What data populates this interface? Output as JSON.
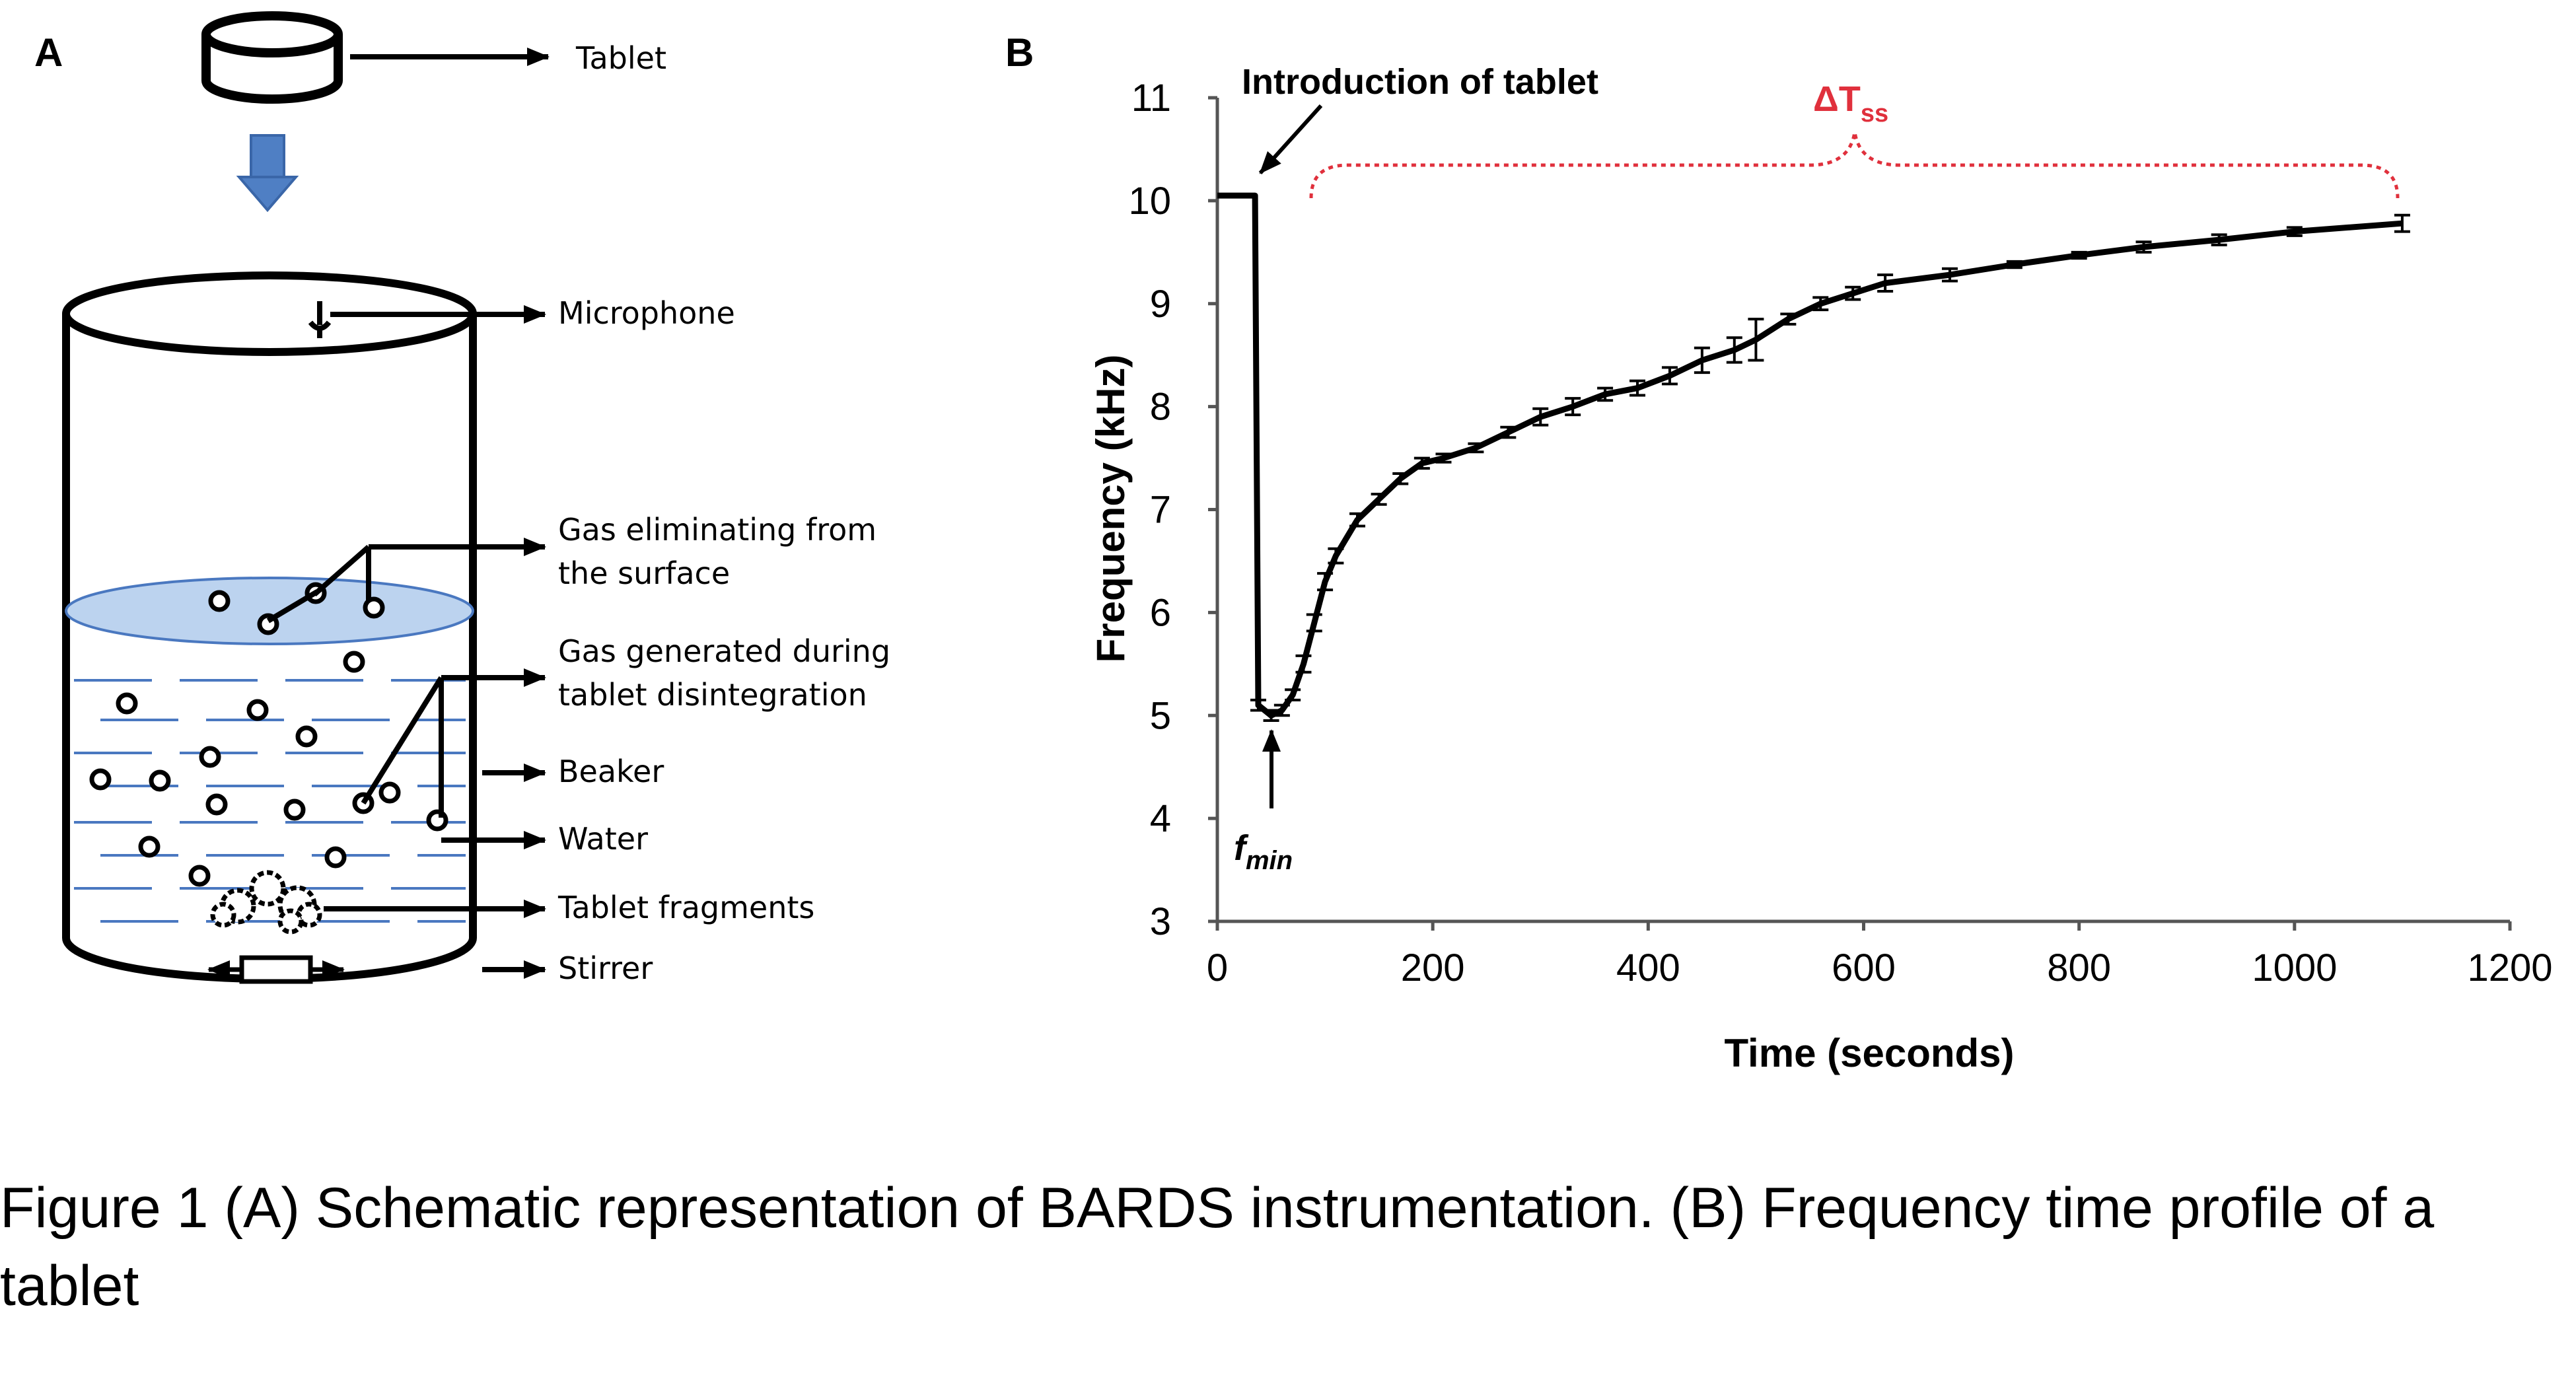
{
  "panel_a": {
    "letter": "A",
    "labels": {
      "tablet": "Tablet",
      "microphone": "Microphone",
      "gas_surface_line1": "Gas eliminating from",
      "gas_surface_line2": "the surface",
      "gas_generated_line1": "Gas generated during",
      "gas_generated_line2": "tablet disintegration",
      "beaker": "Beaker",
      "water": "Water",
      "fragments": "Tablet fragments",
      "stirrer": "Stirrer"
    },
    "colors": {
      "water_surface": "#bcd3ef",
      "water_lines": "#4a78c0",
      "arrow_down": "#4f7fc4"
    }
  },
  "panel_b": {
    "letter": "B",
    "annotation_intro": "Introduction of tablet",
    "annotation_fmin_f": "f",
    "annotation_fmin_sub": "min",
    "annotation_dtss_main": "ΔT",
    "annotation_dtss_sub": "ss",
    "colors": {
      "line": "#000000",
      "dtss": "#e0303c"
    }
  },
  "chart_data": {
    "type": "line",
    "title": "",
    "xlabel": "Time (seconds)",
    "ylabel": "Frequency (kHz)",
    "xlim": [
      0,
      1200
    ],
    "ylim": [
      3,
      11
    ],
    "xticks": [
      0,
      200,
      400,
      600,
      800,
      1000,
      1200
    ],
    "yticks": [
      3,
      4,
      5,
      6,
      7,
      8,
      9,
      10,
      11
    ],
    "grid": false,
    "series": [
      {
        "x": [
          0,
          35,
          35,
          38,
          50,
          60,
          70,
          80,
          90,
          100,
          110,
          130,
          150,
          170,
          190,
          210,
          240,
          270,
          300,
          330,
          360,
          390,
          420,
          450,
          480,
          500,
          530,
          560,
          590,
          620,
          680,
          740,
          800,
          860,
          930,
          1000,
          1100
        ],
        "y": [
          10.05,
          10.05,
          10.05,
          5.1,
          5.0,
          5.05,
          5.2,
          5.5,
          5.9,
          6.3,
          6.55,
          6.9,
          7.1,
          7.3,
          7.45,
          7.5,
          7.6,
          7.75,
          7.9,
          8.0,
          8.12,
          8.18,
          8.3,
          8.45,
          8.55,
          8.65,
          8.85,
          9.0,
          9.1,
          9.2,
          9.28,
          9.38,
          9.47,
          9.55,
          9.62,
          9.7,
          9.78
        ],
        "errors": [
          0,
          0,
          0,
          0.05,
          0.05,
          0.05,
          0.05,
          0.08,
          0.08,
          0.08,
          0.07,
          0.06,
          0.05,
          0.05,
          0.05,
          0.04,
          0.04,
          0.05,
          0.08,
          0.08,
          0.06,
          0.07,
          0.08,
          0.12,
          0.12,
          0.2,
          0.05,
          0.06,
          0.06,
          0.08,
          0.06,
          0.03,
          0.03,
          0.05,
          0.05,
          0.04,
          0.08
        ]
      }
    ]
  },
  "caption": {
    "text": "Figure 1 (A) Schematic representation of BARDS instrumentation. (B) Frequency time profile of a tablet"
  }
}
